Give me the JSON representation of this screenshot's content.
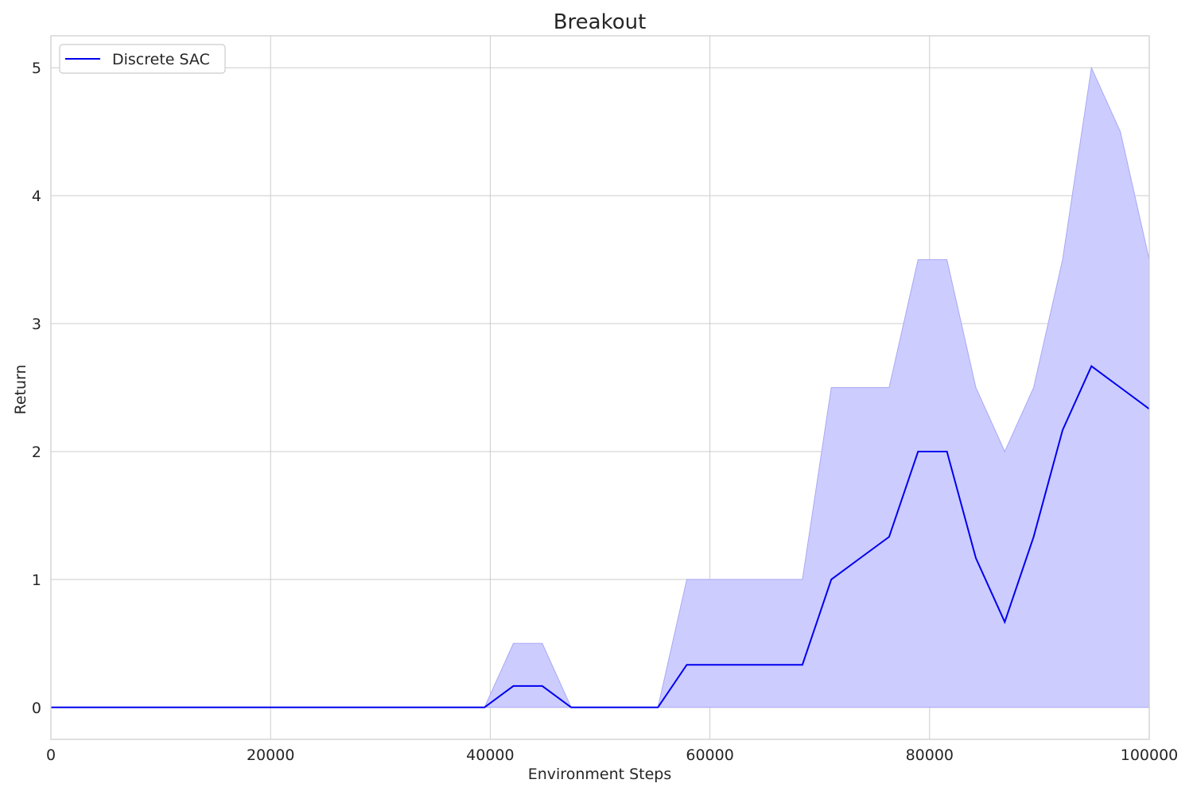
{
  "chart_data": {
    "type": "line",
    "title": "Breakout",
    "xlabel": "Environment Steps",
    "ylabel": "Return",
    "xlim": [
      0,
      100000
    ],
    "ylim": [
      -0.25,
      5.25
    ],
    "xticks": [
      0,
      20000,
      40000,
      60000,
      80000,
      100000
    ],
    "yticks": [
      0,
      1,
      2,
      3,
      4,
      5
    ],
    "grid": true,
    "legend": {
      "position": "top-left",
      "entries": [
        "Discrete SAC"
      ]
    },
    "colors": {
      "line": "#0000ee",
      "band": "#ccccff",
      "band_edge": "#a9a9f5",
      "grid": "#cccccc"
    },
    "series": [
      {
        "name": "Discrete SAC",
        "x": [
          0,
          2632,
          5263,
          7895,
          10526,
          13158,
          15789,
          18421,
          21053,
          23684,
          26316,
          28947,
          31579,
          34211,
          36842,
          39474,
          42105,
          44737,
          47368,
          50000,
          52632,
          55263,
          57895,
          60526,
          63158,
          65789,
          68421,
          71053,
          73684,
          76316,
          78947,
          81579,
          84211,
          86842,
          89474,
          92105,
          94737,
          97368,
          100000
        ],
        "mean": [
          0,
          0,
          0,
          0,
          0,
          0,
          0,
          0,
          0,
          0,
          0,
          0,
          0,
          0,
          0,
          0,
          0.167,
          0.167,
          0,
          0,
          0,
          0,
          0.333,
          0.333,
          0.333,
          0.333,
          0.333,
          1.0,
          1.167,
          1.333,
          2.0,
          2.0,
          1.167,
          0.667,
          1.333,
          2.167,
          2.667,
          2.5,
          2.333
        ],
        "lower": [
          0,
          0,
          0,
          0,
          0,
          0,
          0,
          0,
          0,
          0,
          0,
          0,
          0,
          0,
          0,
          0,
          0,
          0,
          0,
          0,
          0,
          0,
          0,
          0,
          0,
          0,
          0,
          0,
          0,
          0,
          0,
          0,
          0,
          0,
          0,
          0,
          0,
          0,
          0
        ],
        "upper": [
          0,
          0,
          0,
          0,
          0,
          0,
          0,
          0,
          0,
          0,
          0,
          0,
          0,
          0,
          0,
          0,
          0.5,
          0.5,
          0,
          0,
          0,
          0,
          1.0,
          1.0,
          1.0,
          1.0,
          1.0,
          2.5,
          2.5,
          2.5,
          3.5,
          3.5,
          2.5,
          2.0,
          2.5,
          3.5,
          5.0,
          4.5,
          3.5
        ]
      }
    ]
  }
}
